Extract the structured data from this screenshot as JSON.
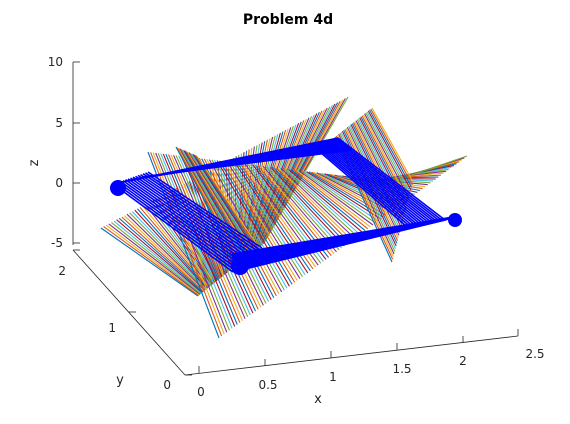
{
  "chart_data": {
    "type": "3d-surface",
    "title": "Problem 4d",
    "xlabel": "x",
    "ylabel": "y",
    "zlabel": "z",
    "xlim": [
      0,
      2.5
    ],
    "ylim": [
      0,
      2
    ],
    "zlim": [
      -5,
      10
    ],
    "x_ticks": [
      "0",
      "0.5",
      "1",
      "1.5",
      "2",
      "2.5"
    ],
    "y_ticks": [
      "0",
      "1",
      "2"
    ],
    "z_ticks": [
      "-5",
      "0",
      "5",
      "10"
    ],
    "series": [
      {
        "name": "vertical-planes",
        "description": "four multicoloured striped planes crossing the frame",
        "colors": [
          "#0072BD",
          "#D95319",
          "#EDB120",
          "#7E2F8E",
          "#77AC30",
          "#4DBEEE",
          "#A2142F"
        ]
      },
      {
        "name": "square-frame",
        "description": "blue square frame of lines at z near 0",
        "color": "#0000FF"
      }
    ]
  }
}
